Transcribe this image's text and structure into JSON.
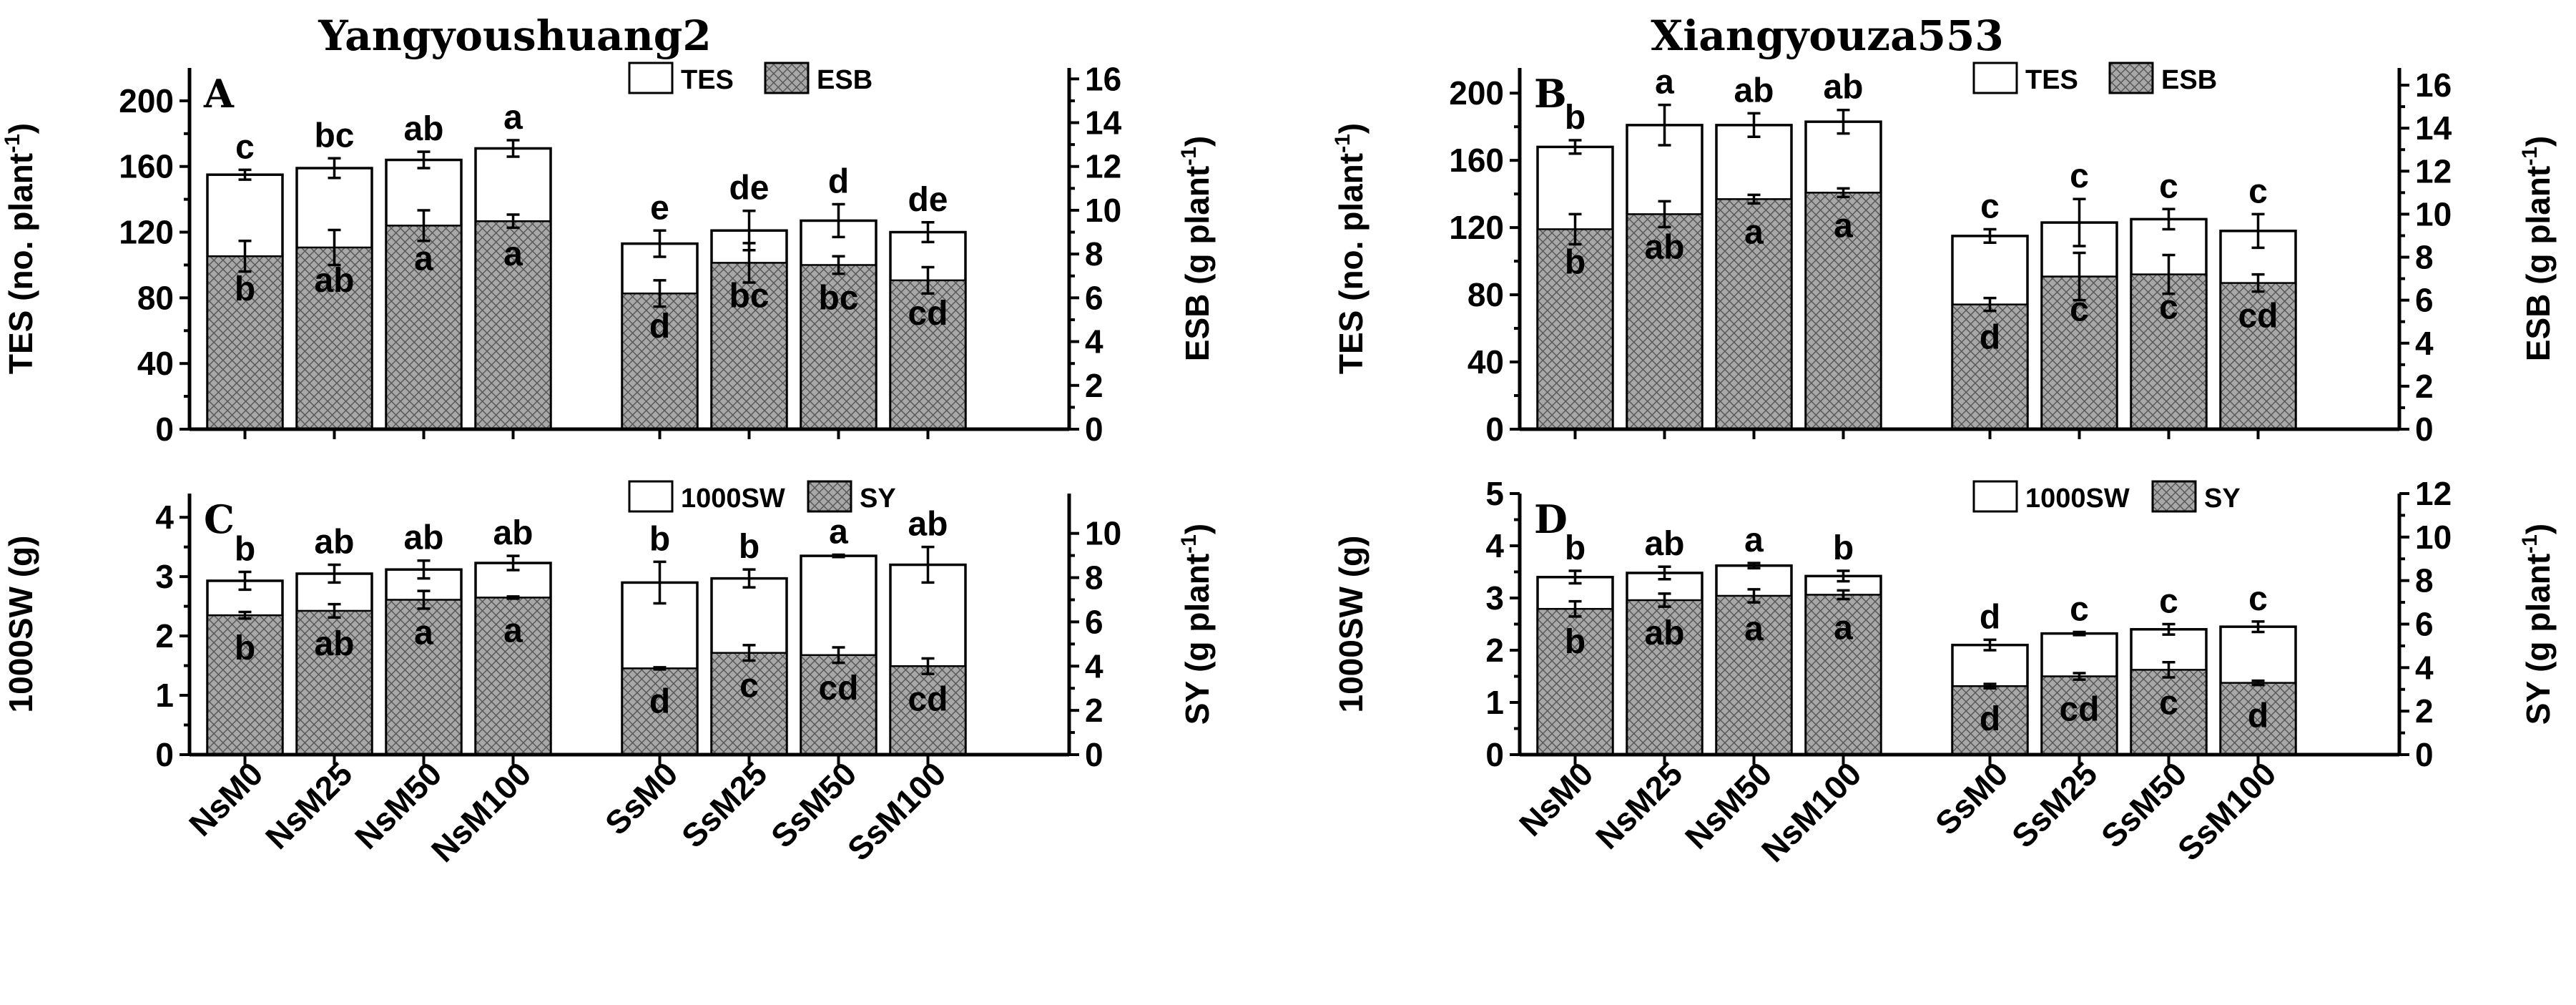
{
  "figure": {
    "titles": [
      "Yangyoushuang2",
      "Xiangyouza553"
    ],
    "categories": [
      "NsM0",
      "NsM25",
      "NsM50",
      "NsM100",
      "SsM0",
      "SsM25",
      "SsM50",
      "SsM100"
    ]
  },
  "colors": {
    "pattern_fill": "#a8a8a8",
    "pattern_line": "#5a5a5a",
    "axis": "#000000",
    "background": "#ffffff"
  },
  "chart_data": [
    {
      "type": "bar",
      "panel": "A",
      "title": "Yangyoushuang2",
      "categories": [
        "NsM0",
        "NsM25",
        "NsM50",
        "NsM100",
        "SsM0",
        "SsM25",
        "SsM50",
        "SsM100"
      ],
      "left_axis": {
        "label": "TES (no. plant",
        "sup": "-1",
        "suffix": ")",
        "ylim": [
          0,
          220
        ],
        "ticks": [
          0,
          40,
          80,
          120,
          160,
          200
        ]
      },
      "right_axis": {
        "label": "ESB (g plant",
        "sup": "-1",
        "suffix": ")",
        "ylim": [
          0,
          16.5
        ],
        "ticks": [
          0,
          2,
          4,
          6,
          8,
          10,
          12,
          14,
          16
        ]
      },
      "legend": [
        "TES",
        "ESB"
      ],
      "series": [
        {
          "name": "TES",
          "axis": "left",
          "values": [
            155,
            159,
            164,
            171,
            113,
            121,
            127,
            120
          ],
          "errors": [
            3,
            6,
            5,
            5,
            8,
            12,
            10,
            6
          ],
          "letters": [
            "c",
            "bc",
            "ab",
            "a",
            "e",
            "de",
            "d",
            "de"
          ]
        },
        {
          "name": "ESB",
          "axis": "right",
          "values": [
            7.9,
            8.3,
            9.3,
            9.5,
            6.2,
            7.6,
            7.5,
            6.8
          ],
          "errors": [
            0.7,
            0.8,
            0.7,
            0.3,
            0.6,
            0.9,
            0.4,
            0.6
          ],
          "letters": [
            "b",
            "ab",
            "a",
            "a",
            "d",
            "bc",
            "bc",
            "cd"
          ]
        }
      ]
    },
    {
      "type": "bar",
      "panel": "B",
      "title": "Xiangyouza553",
      "categories": [
        "NsM0",
        "NsM25",
        "NsM50",
        "NsM100",
        "SsM0",
        "SsM25",
        "SsM50",
        "SsM100"
      ],
      "left_axis": {
        "label": "TES (no. plant",
        "sup": "-1",
        "suffix": ")",
        "ylim": [
          0,
          215
        ],
        "ticks": [
          0,
          40,
          80,
          120,
          160,
          200
        ]
      },
      "right_axis": {
        "label": "ESB (g plant",
        "sup": "-1",
        "suffix": ")",
        "ylim": [
          0,
          16.8
        ],
        "ticks": [
          0,
          2,
          4,
          6,
          8,
          10,
          12,
          14,
          16
        ]
      },
      "legend": [
        "TES",
        "ESB"
      ],
      "series": [
        {
          "name": "TES",
          "axis": "left",
          "values": [
            168,
            181,
            181,
            183,
            115,
            123,
            125,
            118
          ],
          "errors": [
            4,
            12,
            7,
            7,
            4,
            14,
            6,
            10
          ],
          "letters": [
            "b",
            "a",
            "ab",
            "ab",
            "c",
            "c",
            "c",
            "c"
          ]
        },
        {
          "name": "ESB",
          "axis": "right",
          "values": [
            9.3,
            10.0,
            10.7,
            11.0,
            5.8,
            7.1,
            7.2,
            6.8
          ],
          "errors": [
            0.7,
            0.6,
            0.2,
            0.2,
            0.3,
            1.1,
            0.9,
            0.4
          ],
          "letters": [
            "b",
            "ab",
            "a",
            "a",
            "d",
            "c",
            "c",
            "cd"
          ]
        }
      ]
    },
    {
      "type": "bar",
      "panel": "C",
      "title": "",
      "categories": [
        "NsM0",
        "NsM25",
        "NsM50",
        "NsM100",
        "SsM0",
        "SsM25",
        "SsM50",
        "SsM100"
      ],
      "left_axis": {
        "label": "1000SW (g)",
        "sup": "",
        "suffix": "",
        "ylim": [
          0,
          4.4
        ],
        "ticks": [
          0,
          1,
          2,
          3,
          4
        ]
      },
      "right_axis": {
        "label": "SY (g plant",
        "sup": "-1",
        "suffix": ")",
        "ylim": [
          0,
          11.8
        ],
        "ticks": [
          0,
          2,
          4,
          6,
          8,
          10
        ]
      },
      "legend": [
        "1000SW",
        "SY"
      ],
      "series": [
        {
          "name": "1000SW",
          "axis": "left",
          "values": [
            2.93,
            3.05,
            3.12,
            3.23,
            2.9,
            2.97,
            3.35,
            3.2
          ],
          "errors": [
            0.15,
            0.15,
            0.15,
            0.12,
            0.35,
            0.15,
            0.02,
            0.3
          ],
          "letters": [
            "b",
            "ab",
            "ab",
            "ab",
            "b",
            "b",
            "a",
            "ab"
          ]
        },
        {
          "name": "SY",
          "axis": "right",
          "values": [
            6.3,
            6.5,
            7.0,
            7.1,
            3.9,
            4.6,
            4.5,
            4.0
          ],
          "errors": [
            0.15,
            0.3,
            0.4,
            0.05,
            0.05,
            0.35,
            0.35,
            0.35
          ],
          "letters": [
            "b",
            "ab",
            "a",
            "a",
            "d",
            "c",
            "cd",
            "cd"
          ]
        }
      ]
    },
    {
      "type": "bar",
      "panel": "D",
      "title": "",
      "categories": [
        "NsM0",
        "NsM25",
        "NsM50",
        "NsM100",
        "SsM0",
        "SsM25",
        "SsM50",
        "SsM100"
      ],
      "left_axis": {
        "label": "1000SW (g)",
        "sup": "",
        "suffix": "",
        "ylim": [
          0,
          5
        ],
        "ticks": [
          0,
          1,
          2,
          3,
          4,
          5
        ]
      },
      "right_axis": {
        "label": "SY (g plant",
        "sup": "-1",
        "suffix": ")",
        "ylim": [
          0,
          12
        ],
        "ticks": [
          0,
          2,
          4,
          6,
          8,
          10,
          12
        ]
      },
      "legend": [
        "1000SW",
        "SY"
      ],
      "series": [
        {
          "name": "1000SW",
          "axis": "left",
          "values": [
            3.4,
            3.48,
            3.62,
            3.42,
            2.1,
            2.32,
            2.4,
            2.45
          ],
          "errors": [
            0.12,
            0.12,
            0.05,
            0.1,
            0.1,
            0.03,
            0.1,
            0.1
          ],
          "letters": [
            "b",
            "ab",
            "a",
            "b",
            "d",
            "c",
            "c",
            "c"
          ]
        },
        {
          "name": "SY",
          "axis": "right",
          "values": [
            6.7,
            7.1,
            7.3,
            7.35,
            3.15,
            3.6,
            3.9,
            3.3
          ],
          "errors": [
            0.35,
            0.3,
            0.3,
            0.2,
            0.1,
            0.15,
            0.35,
            0.1
          ],
          "letters": [
            "b",
            "ab",
            "a",
            "a",
            "d",
            "cd",
            "c",
            "d"
          ]
        }
      ]
    }
  ]
}
